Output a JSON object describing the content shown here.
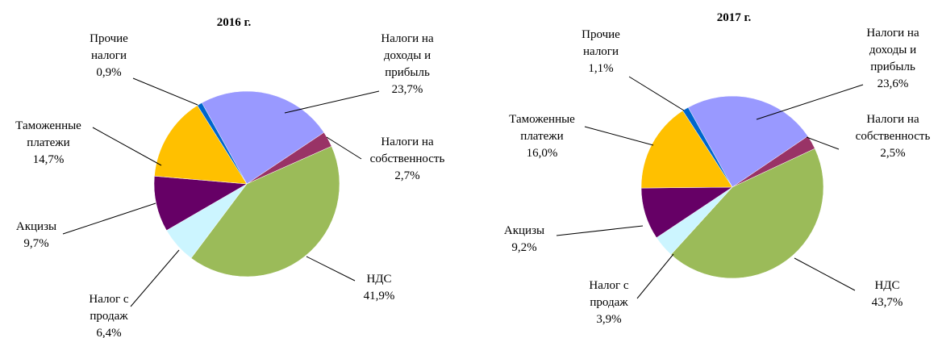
{
  "chart_data": [
    {
      "type": "pie",
      "title": "2016 г.",
      "categories": [
        "Налоги на доходы и прибыль",
        "Налоги на собственность",
        "НДС",
        "Налог с продаж",
        "Акцизы",
        "Таможенные платежи",
        "Прочие налоги"
      ],
      "values": [
        23.7,
        2.7,
        41.9,
        6.4,
        9.7,
        14.7,
        0.9
      ],
      "value_labels": [
        "23,7%",
        "2,7%",
        "41,9%",
        "6,4%",
        "9,7%",
        "14,7%",
        "0,9%"
      ],
      "colors": [
        "#9999ff",
        "#993366",
        "#9bbb59",
        "#ccf5ff",
        "#660066",
        "#ffc000",
        "#0066cc"
      ]
    },
    {
      "type": "pie",
      "title": "2017 г.",
      "categories": [
        "Налоги на доходы и прибыль",
        "Налоги на собственность",
        "НДС",
        "Налог с продаж",
        "Акцизы",
        "Таможенные платежи",
        "Прочие налоги"
      ],
      "values": [
        23.6,
        2.5,
        43.7,
        3.9,
        9.2,
        16.0,
        1.1
      ],
      "value_labels": [
        "23,6%",
        "2,5%",
        "43,7%",
        "3,9%",
        "9,2%",
        "16,0%",
        "1,1%"
      ],
      "colors": [
        "#9999ff",
        "#993366",
        "#9bbb59",
        "#ccf5ff",
        "#660066",
        "#ffc000",
        "#0066cc"
      ]
    }
  ]
}
